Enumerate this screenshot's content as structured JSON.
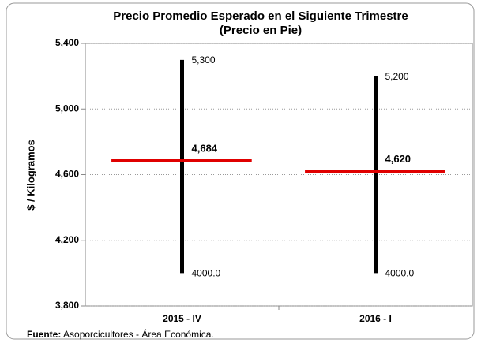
{
  "chart_data": {
    "type": "hilo",
    "title": "Precio Promedio Esperado en el Siguiente Trimestre",
    "subtitle": "(Precio en Pie)",
    "y_label": "$ / Kilogramos",
    "categories": [
      "2015 - IV",
      "2016 - I"
    ],
    "high": {
      "color": "#000000",
      "values": [
        5300,
        5200
      ],
      "value_labels": [
        "5,300",
        "5,200"
      ]
    },
    "low": {
      "color": "#000000",
      "values": [
        4000,
        4000
      ],
      "value_labels": [
        "4000.0",
        "4000.0"
      ]
    },
    "mean": {
      "color": "#e00000",
      "values": [
        4684,
        4620
      ],
      "value_labels": [
        "4,684",
        "4,620"
      ]
    },
    "ylim": [
      3800,
      5400
    ],
    "yticks": [
      {
        "value": 3800,
        "label": "3,800"
      },
      {
        "value": 4200,
        "label": "4,200"
      },
      {
        "value": 4600,
        "label": "4,600"
      },
      {
        "value": 5000,
        "label": "5,000"
      },
      {
        "value": 5400,
        "label": "5,400"
      }
    ],
    "grid": true,
    "source": {
      "label": "Fuente:",
      "text": "Asoporcicultores - Área Económica."
    }
  }
}
